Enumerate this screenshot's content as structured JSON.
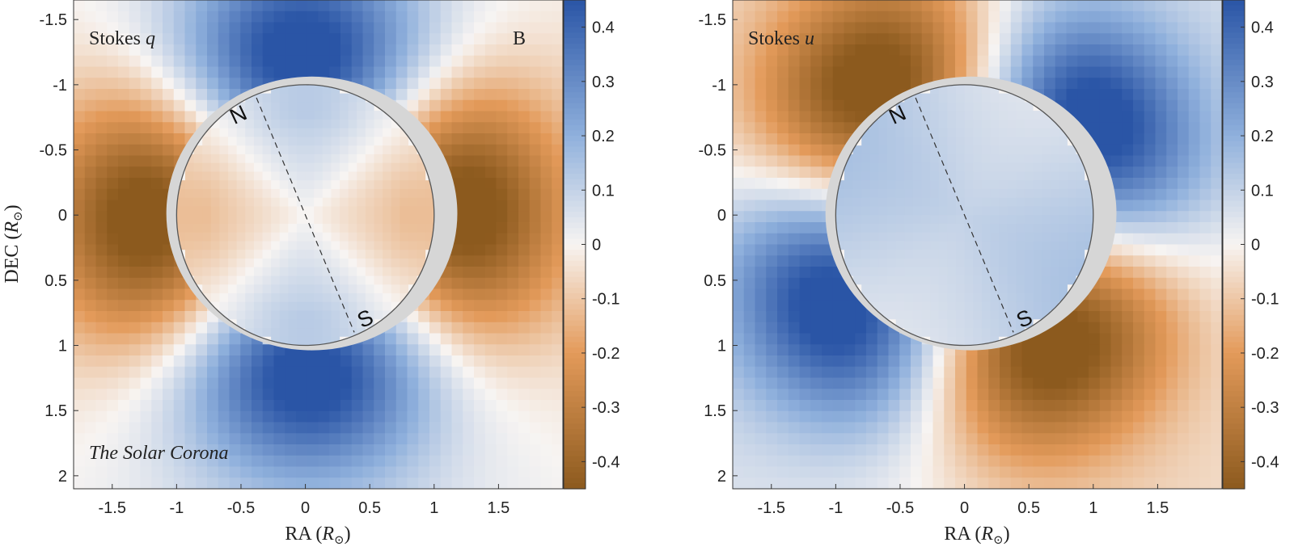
{
  "colorscale": {
    "negative": "#8c5a1e",
    "neg_mid": "#e39a5a",
    "neutral": "#f7f4f2",
    "pos_mid": "#8fb0dc",
    "positive": "#2a55a6",
    "disk_shadow": "#d6d6d6",
    "limb_line": "#555555"
  },
  "chart_data": [
    {
      "type": "heatmap",
      "title": "Stokes q",
      "title_plain": "Stokes ",
      "title_var": "q",
      "panel_label": "B",
      "annotation": "The Solar Corona",
      "xlabel": "RA",
      "xlabel_unit": "R",
      "ylabel": "DEC",
      "ylabel_unit": "R",
      "xlim": [
        -1.8,
        2.0
      ],
      "ylim": [
        2.1,
        -1.65
      ],
      "y_reversed": true,
      "xticks": [
        -1.5,
        -1,
        -0.5,
        0,
        0.5,
        1,
        1.5
      ],
      "xtick_labels": [
        "-1.5",
        "-1",
        "-0.5",
        "0",
        "0.5",
        "1",
        "1.5"
      ],
      "yticks": [
        -1.5,
        -1,
        -0.5,
        0,
        0.5,
        1,
        1.5,
        2
      ],
      "ytick_labels": [
        "-1.5",
        "-1",
        "-0.5",
        "0",
        "0.5",
        "1",
        "1.5",
        "2"
      ],
      "colorbar": {
        "range": [
          -0.45,
          0.45
        ],
        "ticks": [
          0.4,
          0.3,
          0.2,
          0.1,
          0,
          -0.1,
          -0.2,
          -0.3,
          -0.4
        ],
        "tick_labels": [
          "0.4",
          "0.3",
          "0.2",
          "0.1",
          "0",
          "-0.1",
          "-0.2",
          "-0.3",
          "-0.4"
        ]
      },
      "pattern": "q",
      "disk_radius": 1.0,
      "axis_north": [
        -0.38,
        -0.9
      ],
      "axis_south": [
        0.38,
        0.9
      ],
      "north_label": "N",
      "south_label": "S"
    },
    {
      "type": "heatmap",
      "title": "Stokes u",
      "title_plain": "Stokes ",
      "title_var": "u",
      "xlabel": "RA",
      "xlabel_unit": "R",
      "ylabel": "",
      "xlim": [
        -1.8,
        2.0
      ],
      "ylim": [
        2.1,
        -1.65
      ],
      "y_reversed": true,
      "xticks": [
        -1.5,
        -1,
        -0.5,
        0,
        0.5,
        1,
        1.5
      ],
      "xtick_labels": [
        "-1.5",
        "-1",
        "-0.5",
        "0",
        "0.5",
        "1",
        "1.5"
      ],
      "yticks": [
        -1.5,
        -1,
        -0.5,
        0,
        0.5,
        1,
        1.5,
        2
      ],
      "ytick_labels": [
        "-1.5",
        "-1",
        "-0.5",
        "0",
        "0.5",
        "1",
        "1.5",
        "2"
      ],
      "colorbar": {
        "range": [
          -0.45,
          0.45
        ],
        "ticks": [
          0.4,
          0.3,
          0.2,
          0.1,
          0,
          -0.1,
          -0.2,
          -0.3,
          -0.4
        ],
        "tick_labels": [
          "0.4",
          "0.3",
          "0.2",
          "0.1",
          "0",
          "-0.1",
          "-0.2",
          "-0.3",
          "-0.4"
        ]
      },
      "pattern": "u",
      "disk_radius": 1.0,
      "axis_north": [
        -0.38,
        -0.9
      ],
      "axis_south": [
        0.38,
        0.9
      ],
      "north_label": "N",
      "south_label": "S"
    }
  ]
}
